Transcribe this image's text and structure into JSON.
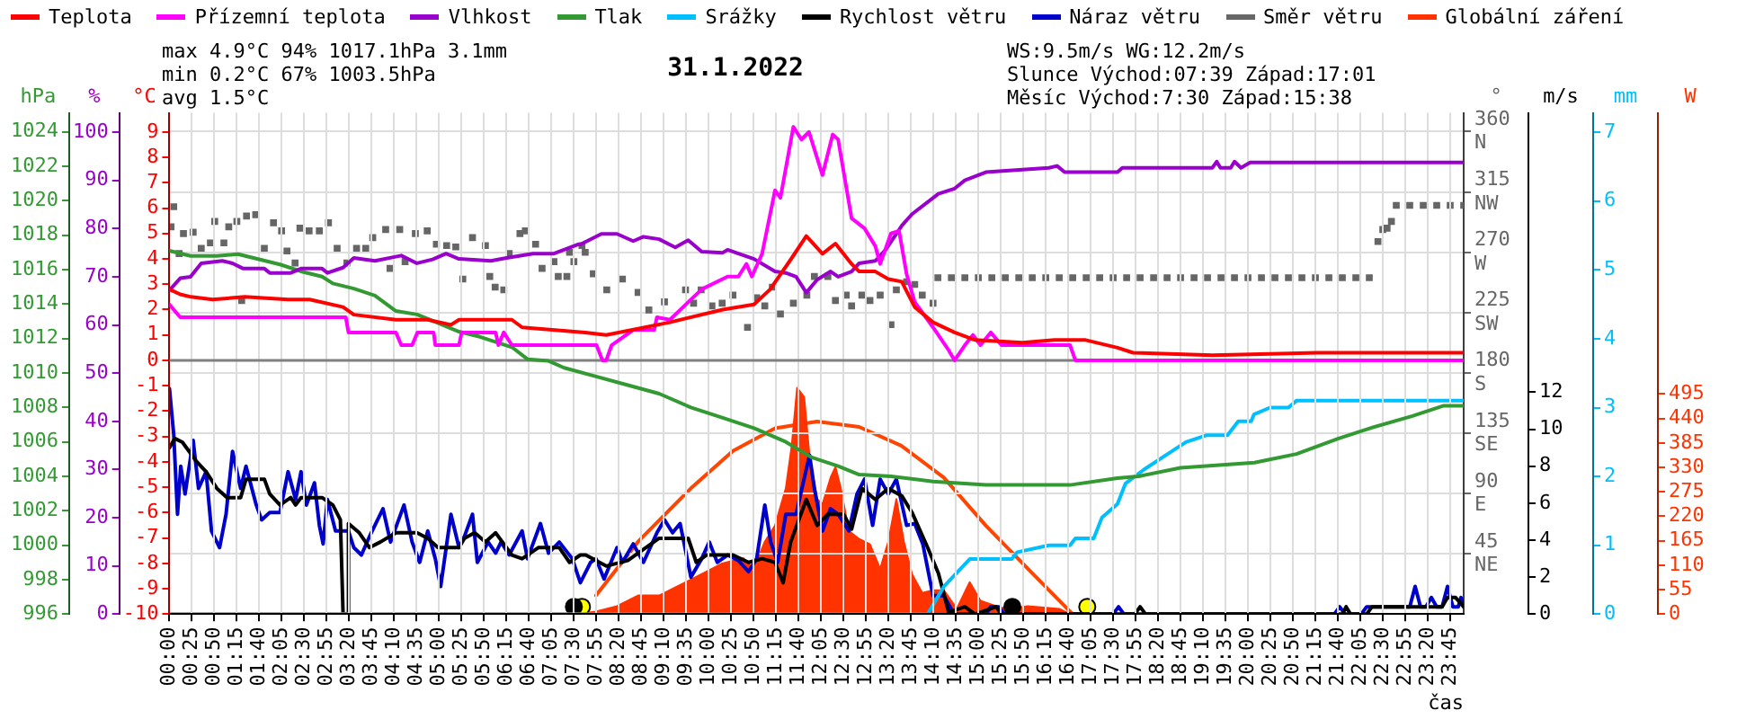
{
  "chart_data": [
    {
      "type": "line",
      "title": "31.1.2022",
      "xlabel": "čas",
      "ylabel": "°C",
      "y2label": "%",
      "y3label": "hPa",
      "annotations": [
        "max 4.9°C 94% 1017.1hPa 3.1mm",
        "min 0.2°C 67% 1003.5hPa",
        "avg 1.5°C",
        "WS:9.5m/s WG:12.2m/s",
        "Slunce Východ:07:39 Západ:17:01",
        "Měsíc Východ:7:30 Západ:15:38"
      ],
      "legend": "top left",
      "grid": "x",
      "xlim": [
        0,
        24
      ],
      "xticks": [
        {
          "value": 0,
          "label": "00:00"
        },
        {
          "value": 0.4167,
          "label": "00:25"
        },
        {
          "value": 0.8333,
          "label": "00:50"
        },
        {
          "value": 1.25,
          "label": "01:15"
        },
        {
          "value": 1.6667,
          "label": "01:40"
        },
        {
          "value": 2.0833,
          "label": "02:05"
        },
        {
          "value": 2.5,
          "label": "02:30"
        },
        {
          "value": 2.9167,
          "label": "02:55"
        },
        {
          "value": 3.3333,
          "label": "03:20"
        },
        {
          "value": 3.75,
          "label": "03:45"
        },
        {
          "value": 4.1667,
          "label": "04:10"
        },
        {
          "value": 4.5833,
          "label": "04:35"
        },
        {
          "value": 5,
          "label": "05:00"
        },
        {
          "value": 5.4167,
          "label": "05:25"
        },
        {
          "value": 5.8333,
          "label": "05:50"
        },
        {
          "value": 6.25,
          "label": "06:15"
        },
        {
          "value": 6.6667,
          "label": "06:40"
        },
        {
          "value": 7.0833,
          "label": "07:05"
        },
        {
          "value": 7.5,
          "label": "07:30"
        },
        {
          "value": 7.9167,
          "label": "07:55"
        },
        {
          "value": 8.3333,
          "label": "08:20"
        },
        {
          "value": 8.75,
          "label": "08:45"
        },
        {
          "value": 9.1667,
          "label": "09:10"
        },
        {
          "value": 9.5833,
          "label": "09:35"
        },
        {
          "value": 10,
          "label": "10:00"
        },
        {
          "value": 10.4167,
          "label": "10:25"
        },
        {
          "value": 10.8333,
          "label": "10:50"
        },
        {
          "value": 11.25,
          "label": "11:15"
        },
        {
          "value": 11.6667,
          "label": "11:40"
        },
        {
          "value": 12.0833,
          "label": "12:05"
        },
        {
          "value": 12.5,
          "label": "12:30"
        },
        {
          "value": 12.9167,
          "label": "12:55"
        },
        {
          "value": 13.3333,
          "label": "13:20"
        },
        {
          "value": 13.75,
          "label": "13:45"
        },
        {
          "value": 14.1667,
          "label": "14:10"
        },
        {
          "value": 14.5833,
          "label": "14:35"
        },
        {
          "value": 15,
          "label": "15:00"
        },
        {
          "value": 15.4167,
          "label": "15:25"
        },
        {
          "value": 15.8333,
          "label": "15:50"
        },
        {
          "value": 16.25,
          "label": "16:15"
        },
        {
          "value": 16.6667,
          "label": "16:40"
        },
        {
          "value": 17.0833,
          "label": "17:05"
        },
        {
          "value": 17.5,
          "label": "17:30"
        },
        {
          "value": 17.9167,
          "label": "17:55"
        },
        {
          "value": 18.3333,
          "label": "18:20"
        },
        {
          "value": 18.75,
          "label": "18:45"
        },
        {
          "value": 19.1667,
          "label": "19:10"
        },
        {
          "value": 19.5833,
          "label": "19:35"
        },
        {
          "value": 20,
          "label": "20:00"
        },
        {
          "value": 20.4167,
          "label": "20:25"
        },
        {
          "value": 20.8333,
          "label": "20:50"
        },
        {
          "value": 21.25,
          "label": "21:15"
        },
        {
          "value": 21.6667,
          "label": "21:40"
        },
        {
          "value": 22.0833,
          "label": "22:05"
        },
        {
          "value": 22.5,
          "label": "22:30"
        },
        {
          "value": 22.9167,
          "label": "22:55"
        },
        {
          "value": 23.3333,
          "label": "23:20"
        },
        {
          "value": 23.75,
          "label": "23:45"
        }
      ],
      "ylim": [
        -10,
        9.75
      ],
      "yticks": [
        -10,
        -9,
        -8,
        -7,
        -6,
        -5,
        -4,
        -3,
        -2,
        -1,
        0,
        1,
        2,
        3,
        4,
        5,
        6,
        7,
        8,
        9
      ],
      "y2lim": [
        0,
        104
      ],
      "y2ticks": [
        0,
        10,
        20,
        30,
        40,
        50,
        60,
        70,
        80,
        90,
        100
      ],
      "y3lim": [
        996,
        1025.1
      ],
      "y3ticks": [
        996,
        998,
        1000,
        1002,
        1004,
        1006,
        1008,
        1010,
        1012,
        1014,
        1016,
        1018,
        1020,
        1022,
        1024
      ],
      "ref_lines": [
        {
          "axis": "y",
          "value": 0,
          "color": "#808080"
        }
      ],
      "series": [
        {
          "name": "Teplota",
          "color": "#ff0000",
          "x": [
            0,
            0.2,
            0.4,
            0.8,
            1.4,
            2.2,
            2.6,
            3.22,
            3.42,
            4.2,
            4.79,
            5.22,
            5.37,
            6.35,
            6.54,
            7.71,
            8.1,
            9.28,
            10.26,
            10.84,
            11.14,
            11.53,
            11.81,
            12.11,
            12.35,
            12.65,
            12.79,
            13.09,
            13.33,
            13.58,
            13.82,
            14.16,
            14.56,
            14.94,
            15.82,
            16.41,
            16.99,
            17.58,
            17.87,
            19.34,
            21.29,
            24
          ],
          "values": [
            2.8,
            2.6,
            2.5,
            2.4,
            2.5,
            2.4,
            2.4,
            2.1,
            1.8,
            1.6,
            1.6,
            1.4,
            1.6,
            1.6,
            1.3,
            1.1,
            1.0,
            1.5,
            2.0,
            2.2,
            2.8,
            4.0,
            4.9,
            4.2,
            4.6,
            3.8,
            3.5,
            3.5,
            3.2,
            3.1,
            2.1,
            1.5,
            1.1,
            0.8,
            0.7,
            0.8,
            0.8,
            0.5,
            0.3,
            0.2,
            0.3,
            0.3
          ]
        },
        {
          "name": "Přízemní teplota",
          "color": "#ff00ff",
          "x": [
            0,
            0.2,
            3.27,
            3.32,
            4.2,
            4.3,
            4.5,
            4.6,
            4.9,
            4.93,
            5.37,
            5.42,
            6.05,
            6.1,
            6.2,
            6.35,
            7.92,
            8.03,
            8.1,
            8.2,
            8.6,
            8.99,
            9.04,
            9.28,
            9.87,
            10.35,
            10.55,
            10.7,
            10.8,
            10.99,
            11.23,
            11.33,
            11.57,
            11.72,
            11.86,
            12.11,
            12.3,
            12.4,
            12.65,
            12.89,
            13.09,
            13.18,
            13.38,
            13.53,
            13.67,
            13.82,
            14.16,
            14.45,
            14.56,
            14.75,
            14.9,
            15.04,
            15.23,
            15.43,
            16.7,
            16.8,
            24
          ],
          "values": [
            2.2,
            1.7,
            1.7,
            1.1,
            1.1,
            0.6,
            0.6,
            1.1,
            1.1,
            0.6,
            0.6,
            1.1,
            1.1,
            0.6,
            1.1,
            0.6,
            0.6,
            0,
            0,
            0.6,
            1.2,
            1.2,
            1.7,
            1.6,
            2.8,
            3.3,
            3.3,
            3.8,
            3.3,
            4.2,
            6.7,
            6.4,
            9.2,
            8.7,
            9.0,
            7.3,
            8.9,
            8.7,
            5.6,
            5.2,
            4.5,
            3.8,
            5.0,
            5.1,
            3.4,
            2.3,
            1.3,
            0.4,
            0,
            0.6,
            1.0,
            0.6,
            1.1,
            0.6,
            0.6,
            0,
            0
          ]
        },
        {
          "name": "Vlhkost",
          "color": "#9900cc",
          "axis": "y2",
          "x": [
            0,
            0.2,
            0.39,
            0.59,
            0.98,
            1.17,
            1.37,
            1.76,
            1.86,
            2.25,
            2.44,
            2.83,
            2.93,
            3.22,
            3.42,
            3.81,
            4.3,
            4.59,
            4.88,
            5.13,
            5.37,
            5.96,
            6.25,
            6.74,
            7.13,
            7.57,
            7.62,
            8.01,
            8.3,
            8.6,
            8.79,
            9.08,
            9.38,
            9.62,
            9.87,
            10.26,
            10.35,
            10.55,
            10.84,
            11.23,
            11.43,
            11.62,
            11.81,
            12.01,
            12.26,
            12.4,
            12.65,
            12.79,
            13.09,
            13.28,
            13.48,
            13.58,
            13.77,
            14.26,
            14.56,
            14.75,
            15.14,
            16.31,
            16.46,
            16.6,
            17.58,
            17.67,
            19.34,
            19.42,
            19.49,
            19.68,
            19.75,
            19.87,
            20.04,
            24
          ],
          "values": [
            67.2,
            69.7,
            70,
            72.8,
            73.3,
            72.8,
            71.7,
            71.7,
            70.8,
            70.8,
            71.7,
            71.7,
            70.8,
            71.9,
            73.9,
            73.3,
            74.4,
            72.8,
            73.6,
            74.8,
            73.7,
            73.3,
            73.9,
            74.8,
            74.8,
            76.7,
            76.7,
            78.9,
            78.9,
            77.4,
            78.3,
            77.8,
            76.1,
            77.6,
            75.2,
            75,
            75.6,
            74.8,
            73.7,
            71.1,
            70.8,
            70,
            66.7,
            69.4,
            71.1,
            70,
            71.1,
            72.8,
            73.3,
            75.6,
            78.9,
            80.6,
            83,
            87.2,
            88.3,
            90,
            91.7,
            92.6,
            93,
            91.7,
            91.7,
            92.6,
            92.6,
            93.9,
            92.6,
            92.6,
            93.9,
            92.6,
            93.7,
            93.7
          ]
        },
        {
          "name": "Tlak",
          "color": "#339933",
          "axis": "y3",
          "x": [
            0,
            0.39,
            0.88,
            1.27,
            1.66,
            2.05,
            2.44,
            2.83,
            3.03,
            3.42,
            3.81,
            4.2,
            4.59,
            4.98,
            5.37,
            5.76,
            6.35,
            6.64,
            7.03,
            7.32,
            7.91,
            8.5,
            9.08,
            9.67,
            10.26,
            10.84,
            11.43,
            11.91,
            12.4,
            12.79,
            13.38,
            14.16,
            15.14,
            16.11,
            16.7,
            17.58,
            17.97,
            18.75,
            20.12,
            20.9,
            21.68,
            22.27,
            23.05,
            23.63,
            24
          ],
          "values": [
            1017.1,
            1016.8,
            1016.8,
            1016.9,
            1016.6,
            1016.3,
            1015.9,
            1015.6,
            1015.2,
            1014.9,
            1014.5,
            1013.6,
            1013.4,
            1012.9,
            1012.4,
            1012.1,
            1011.5,
            1010.8,
            1010.7,
            1010.3,
            1009.8,
            1009.3,
            1008.8,
            1008.0,
            1007.4,
            1006.8,
            1006.0,
            1005.1,
            1004.6,
            1004.1,
            1004.0,
            1003.7,
            1003.5,
            1003.5,
            1003.5,
            1003.9,
            1004.0,
            1004.5,
            1004.8,
            1005.3,
            1006.2,
            1006.8,
            1007.5,
            1008.1,
            1008.1
          ]
        }
      ]
    },
    {
      "type": "line",
      "ylabel": "°",
      "y2label": "m/s",
      "y3label": "mm",
      "legend": "top",
      "grid": "y",
      "tick_labels": "y",
      "xlim": [
        0,
        24
      ],
      "ylim": [
        0,
        374
      ],
      "yticks": [
        {
          "value": 45,
          "label": "45 NE"
        },
        {
          "value": 90,
          "label": "90 E"
        },
        {
          "value": 135,
          "label": "135 SE"
        },
        {
          "value": 180,
          "label": "180 S"
        },
        {
          "value": 225,
          "label": "225 SW"
        },
        {
          "value": 270,
          "label": "270 W"
        },
        {
          "value": 315,
          "label": "315 NW"
        },
        {
          "value": 360,
          "label": "360 N"
        }
      ],
      "y2lim": [
        0,
        27.1
      ],
      "y2ticks": [
        0,
        2,
        4,
        6,
        8,
        10,
        12
      ],
      "y3lim": [
        0,
        7.28
      ],
      "y3ticks": [
        0,
        1,
        2,
        3,
        4,
        5,
        6,
        7
      ],
      "series": [
        {
          "name": "Srážky",
          "color": "#00bfff",
          "axis": "y3",
          "x": [
            0,
            14.06,
            14.36,
            14.84,
            15.62,
            15.72,
            16.31,
            16.7,
            16.8,
            17.14,
            17.29,
            17.58,
            17.73,
            18.07,
            18.46,
            18.85,
            19.24,
            19.62,
            19.72,
            19.82,
            20.06,
            20.11,
            20.41,
            20.75,
            20.9,
            24
          ],
          "values": [
            0,
            0,
            0.4,
            0.8,
            0.8,
            0.9,
            1.0,
            1.0,
            1.1,
            1.1,
            1.4,
            1.6,
            1.9,
            2.1,
            2.3,
            2.5,
            2.6,
            2.6,
            2.7,
            2.8,
            2.8,
            2.9,
            3.0,
            3.0,
            3.1,
            3.1
          ]
        },
        {
          "name": "Rychlost větru",
          "color": "#000000",
          "axis": "y2",
          "x": [
            0,
            0.1,
            0.24,
            0.49,
            0.68,
            0.88,
            1.07,
            1.32,
            1.42,
            1.76,
            1.86,
            2.05,
            2.25,
            2.34,
            2.44,
            2.83,
            3.03,
            3.17,
            3.22,
            3.3,
            3.32,
            3.52,
            3.71,
            3.91,
            4.2,
            4.59,
            4.79,
            4.98,
            5.37,
            5.47,
            5.66,
            5.86,
            6.05,
            6.35,
            6.54,
            6.84,
            7.23,
            7.42,
            7.62,
            7.72,
            8.1,
            8.5,
            9.08,
            9.62,
            9.77,
            9.96,
            10.45,
            10.74,
            10.99,
            11.23,
            11.38,
            11.52,
            11.81,
            12.01,
            12.21,
            12.5,
            12.65,
            12.84,
            13.09,
            13.33,
            13.58,
            13.77,
            14.06,
            14.26,
            14.45,
            14.75,
            14.94,
            15.33,
            15.43,
            17.9,
            18.0,
            18.1,
            21.75,
            21.82,
            21.9,
            22.2,
            22.3,
            23.6,
            23.7,
            23.85,
            24
          ],
          "values": [
            9.0,
            9.5,
            9.3,
            8.3,
            7.7,
            6.8,
            6.3,
            6.3,
            7.3,
            7.3,
            6.5,
            5.9,
            6.3,
            5.9,
            6.3,
            6.3,
            5.9,
            5.1,
            0,
            0,
            4.9,
            4.4,
            3.6,
            3.9,
            4.4,
            4.4,
            4.1,
            3.6,
            3.6,
            4.1,
            4.4,
            3.9,
            4.4,
            3.2,
            3.0,
            3.6,
            3.6,
            2.8,
            3.2,
            3.2,
            2.6,
            2.9,
            4.1,
            4.1,
            2.8,
            3.2,
            3.2,
            2.8,
            3.0,
            2.8,
            1.7,
            3.9,
            6.2,
            4.8,
            5.4,
            5.4,
            4.6,
            6.8,
            6.2,
            6.8,
            6.4,
            5.5,
            3.6,
            2.2,
            0.1,
            0.4,
            0,
            0.4,
            0,
            0,
            0.4,
            0,
            0,
            0.4,
            0,
            0,
            0.4,
            0.4,
            0.9,
            0.9,
            0.4
          ]
        },
        {
          "name": "Náraz větru",
          "color": "#0000cc",
          "axis": "y2",
          "x": [
            0,
            0.08,
            0.15,
            0.21,
            0.29,
            0.44,
            0.54,
            0.68,
            0.78,
            0.93,
            1.05,
            1.17,
            1.32,
            1.42,
            1.61,
            1.71,
            1.86,
            2.05,
            2.2,
            2.34,
            2.44,
            2.54,
            2.69,
            2.78,
            2.85,
            2.93,
            3.08,
            3.32,
            3.42,
            3.56,
            3.71,
            3.96,
            4.1,
            4.35,
            4.5,
            4.64,
            4.79,
            4.93,
            5.03,
            5.22,
            5.37,
            5.47,
            5.62,
            5.71,
            5.91,
            6.05,
            6.15,
            6.3,
            6.54,
            6.64,
            6.88,
            7.03,
            7.23,
            7.47,
            7.62,
            7.81,
            7.91,
            8.06,
            8.3,
            8.4,
            8.6,
            8.79,
            9.04,
            9.18,
            9.33,
            9.47,
            9.67,
            9.87,
            10.01,
            10.16,
            10.35,
            10.55,
            10.74,
            10.89,
            11.04,
            11.15,
            11.28,
            11.43,
            11.62,
            11.87,
            11.96,
            12.11,
            12.26,
            12.4,
            12.6,
            12.75,
            12.89,
            13.04,
            13.18,
            13.33,
            13.48,
            13.67,
            13.82,
            13.97,
            14.16,
            14.36,
            14.55,
            15.14,
            15.23,
            15.38,
            15.48,
            17.5,
            17.6,
            17.7,
            21.6,
            21.7,
            21.8,
            22.1,
            22.2,
            23.0,
            23.1,
            23.2,
            23.3,
            23.4,
            23.5,
            23.6,
            23.7,
            23.8,
            23.9,
            23.95,
            24
          ],
          "values": [
            12.2,
            9.7,
            5.4,
            8.0,
            6.5,
            9.4,
            6.8,
            7.7,
            4.5,
            3.6,
            5.4,
            8.8,
            6.8,
            8.0,
            5.9,
            5.1,
            5.5,
            5.5,
            7.7,
            6.2,
            7.7,
            5.9,
            7.1,
            4.8,
            3.8,
            6.2,
            4.5,
            4.5,
            3.6,
            3.2,
            4.2,
            5.7,
            3.9,
            5.9,
            3.9,
            2.8,
            4.5,
            3.0,
            1.5,
            5.4,
            3.6,
            4.2,
            5.4,
            2.8,
            3.9,
            3.3,
            3.9,
            3.2,
            4.5,
            3.0,
            4.9,
            3.3,
            3.9,
            3.0,
            1.7,
            2.8,
            3.0,
            1.9,
            3.6,
            2.8,
            3.8,
            2.8,
            4.4,
            5.1,
            4.4,
            4.9,
            2.0,
            3.0,
            3.9,
            2.8,
            3.2,
            2.9,
            2.3,
            3.0,
            5.9,
            3.9,
            2.8,
            5.4,
            5.4,
            8.6,
            6.8,
            4.5,
            5.7,
            5.4,
            4.5,
            6.5,
            7.3,
            4.8,
            7.3,
            6.5,
            7.3,
            4.8,
            4.9,
            3.8,
            1.0,
            1.0,
            0,
            0,
            0.4,
            0.4,
            0,
            0,
            0.4,
            0,
            0,
            0.4,
            0,
            0,
            0.4,
            0.4,
            1.5,
            0.4,
            0.4,
            0.9,
            0.4,
            0.4,
            1.5,
            0.4,
            0.4,
            0.9,
            0.4
          ]
        },
        {
          "name": "Směr větru",
          "color": "#666666",
          "type": "scatter",
          "marker": "square",
          "x": [
            0.03,
            0.08,
            0.18,
            0.26,
            0.44,
            0.59,
            0.76,
            0.84,
            1.01,
            1.1,
            1.25,
            1.34,
            1.43,
            1.6,
            1.76,
            1.93,
            2.08,
            2.18,
            2.33,
            2.42,
            2.59,
            2.78,
            2.95,
            3.11,
            3.29,
            3.47,
            3.64,
            3.77,
            4.01,
            4.09,
            4.27,
            4.37,
            4.56,
            4.78,
            4.95,
            5.14,
            5.31,
            5.44,
            5.62,
            5.86,
            5.94,
            6.04,
            6.2,
            6.3,
            6.5,
            6.6,
            6.79,
            6.91,
            7.13,
            7.21,
            7.37,
            7.5,
            7.65,
            7.86,
            7.42,
            7.71,
            8.11,
            8.4,
            8.69,
            8.89,
            9.18,
            9.57,
            9.72,
            9.86,
            10.06,
            10.25,
            10.45,
            10.72,
            10.89,
            11.04,
            11.18,
            11.33,
            11.57,
            11.82,
            11.96,
            12.21,
            12.35,
            12.55,
            12.65,
            12.84,
            12.99,
            13.18,
            13.38,
            13.48,
            13.67,
            13.82,
            13.96,
            14.16,
            14.25,
            14.5,
            14.75,
            15,
            15.25,
            15.5,
            15.75,
            16,
            16.25,
            16.5,
            16.75,
            17,
            17.25,
            17.5,
            17.75,
            18,
            18.25,
            18.5,
            18.75,
            19,
            19.25,
            19.5,
            19.75,
            20,
            20.25,
            20.5,
            20.75,
            21,
            21.25,
            21.5,
            21.75,
            22,
            22.25,
            22.41,
            22.5,
            22.58,
            22.66,
            22.75,
            23,
            23.25,
            23.5,
            23.75,
            24
          ],
          "values": [
            289,
            304,
            269,
            284,
            285,
            273,
            277,
            293,
            277,
            289,
            293,
            234,
            297,
            298,
            273,
            292,
            286,
            271,
            262,
            288,
            286,
            286,
            292,
            273,
            262,
            273,
            273,
            281,
            287,
            258,
            287,
            263,
            284,
            286,
            276,
            275,
            274,
            250,
            281,
            275,
            252,
            244,
            242,
            269,
            284,
            286,
            276,
            258,
            263,
            252,
            252,
            263,
            275,
            254,
            270,
            270,
            242,
            250,
            240,
            227,
            233,
            242,
            232,
            242,
            230,
            232,
            238,
            214,
            236,
            230,
            244,
            224,
            232,
            238,
            252,
            252,
            234,
            238,
            230,
            238,
            234,
            238,
            216,
            242,
            248,
            246,
            238,
            232,
            251,
            251,
            251,
            251,
            251,
            251,
            251,
            251,
            251,
            251,
            251,
            251,
            251,
            251,
            251,
            251,
            251,
            251,
            251,
            251,
            251,
            251,
            251,
            251,
            251,
            251,
            251,
            251,
            251,
            251,
            251,
            251,
            251,
            278,
            287,
            288,
            293,
            305,
            305,
            305,
            305,
            305,
            305
          ]
        },
        {
          "color": "#000000",
          "axis": "y2",
          "type": "scatter",
          "marker": "circle",
          "x": [
            7.5,
            15.63
          ],
          "values": [
            0.4,
            0.4
          ]
        },
        {
          "color": "#ffff00",
          "axis": "y2",
          "type": "scatter",
          "marker": "circle",
          "x": [
            7.65,
            17.02
          ],
          "values": [
            0.4,
            0.4
          ]
        }
      ]
    },
    {
      "type": "area",
      "ylabel": "W",
      "legend": "top right",
      "tick_labels": "y",
      "xlim": [
        0,
        24
      ],
      "ylim": [
        0,
        1127
      ],
      "yticks": [
        0,
        55,
        110,
        165,
        220,
        275,
        330,
        385,
        440,
        495
      ],
      "series": [
        {
          "name": "Globální záření",
          "color": "#ff3300",
          "x": [
            7.52,
            7.91,
            8.3,
            8.69,
            9.08,
            9.28,
            9.67,
            10.06,
            10.25,
            10.64,
            10.84,
            11.04,
            11.23,
            11.43,
            11.54,
            11.64,
            11.77,
            11.87,
            12.01,
            12.11,
            12.26,
            12.35,
            12.45,
            12.6,
            12.79,
            12.99,
            13.18,
            13.33,
            13.48,
            13.62,
            13.77,
            13.96,
            14.16,
            14.36,
            14.6,
            14.84,
            15.04,
            15.33,
            15.53,
            15.92,
            16.5,
            16.7
          ],
          "values": [
            0,
            6,
            18,
            42,
            42,
            54,
            78,
            102,
            114,
            126,
            102,
            163,
            199,
            283,
            379,
            509,
            488,
            355,
            259,
            247,
            307,
            331,
            283,
            187,
            169,
            157,
            102,
            163,
            259,
            163,
            90,
            48,
            54,
            54,
            12,
            72,
            30,
            18,
            12,
            18,
            12,
            0
          ]
        },
        {
          "color": "#ff4500",
          "type": "line",
          "x": [
            7.91,
            8.69,
            9.67,
            10.45,
            11.23,
            12.01,
            12.79,
            13.57,
            14.36,
            15.14,
            15.92,
            16.7,
            16.75
          ],
          "values": [
            42,
            163,
            283,
            367,
            418,
            433,
            421,
            379,
            307,
            199,
            102,
            6,
            0
          ]
        }
      ]
    }
  ]
}
